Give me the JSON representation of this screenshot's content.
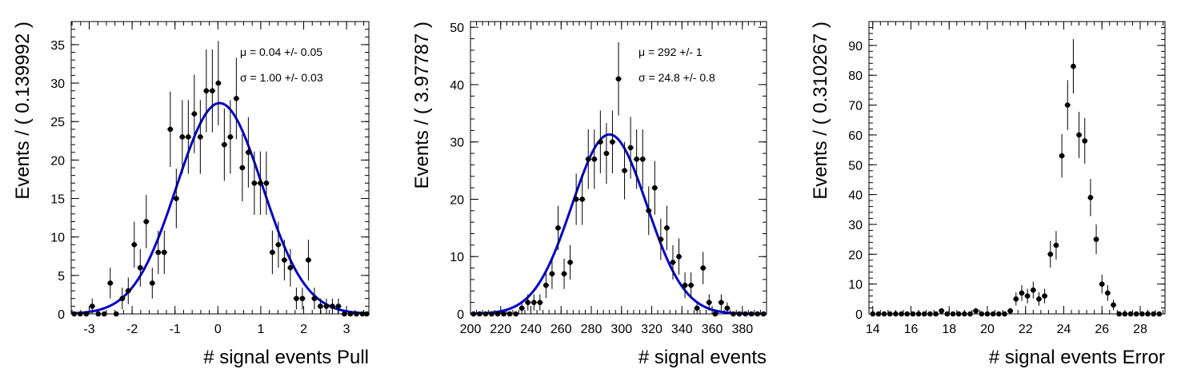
{
  "chart_data": [
    {
      "type": "scatter",
      "xlabel": "# signal events Pull",
      "ylabel": "Events / ( 0.139992 )",
      "xlim": [
        -3.42,
        3.52
      ],
      "ylim": [
        0,
        38
      ],
      "xticks": [
        -3,
        -2,
        -1,
        0,
        1,
        2,
        3
      ],
      "yticks": [
        0,
        5,
        10,
        15,
        20,
        25,
        30,
        35
      ],
      "annotations": [
        "μ =  0.04 +/- 0.05",
        "σ =  1.00 +/- 0.03"
      ],
      "fit": {
        "mean": 0.04,
        "sigma": 1.0,
        "amplitude": 27.4,
        "color": "#0000cc"
      },
      "points": {
        "x": [
          -3.35,
          -3.21,
          -3.07,
          -2.93,
          -2.79,
          -2.65,
          -2.51,
          -2.37,
          -2.23,
          -2.09,
          -1.95,
          -1.81,
          -1.67,
          -1.53,
          -1.39,
          -1.25,
          -1.11,
          -0.97,
          -0.83,
          -0.69,
          -0.55,
          -0.41,
          -0.27,
          -0.13,
          0.01,
          0.15,
          0.29,
          0.43,
          0.57,
          0.71,
          0.85,
          0.99,
          1.13,
          1.27,
          1.41,
          1.55,
          1.69,
          1.83,
          1.97,
          2.11,
          2.25,
          2.39,
          2.53,
          2.67,
          2.81,
          2.95,
          3.09,
          3.23,
          3.37,
          3.47
        ],
        "y": [
          0,
          0,
          0,
          1,
          0,
          0,
          4,
          0,
          2,
          3,
          9,
          6,
          12,
          4,
          8,
          8,
          24,
          15,
          23,
          23,
          26,
          23,
          29,
          29,
          30,
          22,
          23,
          28,
          19,
          21,
          17,
          17,
          17,
          8,
          9,
          7,
          6,
          2,
          2,
          7,
          2,
          1,
          1,
          1,
          1,
          0,
          0,
          0,
          0,
          0
        ]
      }
    },
    {
      "type": "scatter",
      "xlabel": "# signal events",
      "ylabel": "Events / ( 3.97787 )",
      "xlim": [
        200,
        396
      ],
      "ylim": [
        0,
        51
      ],
      "xticks": [
        200,
        220,
        240,
        260,
        280,
        300,
        320,
        340,
        360,
        380
      ],
      "yticks": [
        0,
        10,
        20,
        30,
        40,
        50
      ],
      "annotations": [
        "μ =  292 +/- 1",
        "σ =  24.8 +/- 0.8"
      ],
      "fit": {
        "mean": 292,
        "sigma": 24.8,
        "amplitude": 31.3,
        "color": "#0000cc"
      },
      "points": {
        "x": [
          202,
          206,
          210,
          214,
          218,
          222,
          226,
          230,
          234,
          238,
          242,
          246,
          250,
          254,
          258,
          262,
          266,
          270,
          274,
          278,
          282,
          286,
          290,
          294,
          298,
          302,
          306,
          310,
          314,
          318,
          322,
          326,
          330,
          334,
          338,
          342,
          346,
          350,
          354,
          358,
          362,
          366,
          370,
          374,
          378,
          382,
          386,
          390,
          394
        ],
        "y": [
          0,
          0,
          0,
          0,
          0,
          0,
          0,
          0,
          1,
          2,
          2,
          2,
          5,
          7,
          15,
          7,
          9,
          20,
          20,
          27,
          27,
          30,
          28,
          30,
          41,
          25,
          29,
          27,
          27,
          18,
          22,
          13,
          15,
          9,
          10,
          5,
          5,
          1,
          8,
          2,
          0,
          2,
          1,
          0,
          0,
          0,
          0,
          0,
          0
        ]
      }
    },
    {
      "type": "scatter",
      "xlabel": "# signal events Error",
      "ylabel": "Events / ( 0.310267 )",
      "xlim": [
        13.8,
        29.3
      ],
      "ylim": [
        0,
        98
      ],
      "xticks": [
        14,
        16,
        18,
        20,
        22,
        24,
        26,
        28
      ],
      "yticks": [
        0,
        10,
        20,
        30,
        40,
        50,
        60,
        70,
        80,
        90
      ],
      "annotations": [],
      "points": {
        "x": [
          14.0,
          14.3,
          14.6,
          14.9,
          15.2,
          15.5,
          15.8,
          16.1,
          16.4,
          16.7,
          17.0,
          17.3,
          17.6,
          17.9,
          18.2,
          18.5,
          18.8,
          19.1,
          19.4,
          19.7,
          20.0,
          20.3,
          20.6,
          20.9,
          21.2,
          21.5,
          21.8,
          22.1,
          22.4,
          22.7,
          23.0,
          23.3,
          23.6,
          23.9,
          24.2,
          24.5,
          24.8,
          25.1,
          25.4,
          25.7,
          26.0,
          26.3,
          26.6,
          26.9,
          27.2,
          27.5,
          27.8,
          28.1,
          28.4,
          28.7,
          29.0
        ],
        "y": [
          0,
          0,
          0,
          0,
          0,
          0,
          0,
          0,
          0,
          0,
          0,
          0,
          1,
          0,
          0,
          0,
          0,
          0,
          1,
          0,
          0,
          0,
          0,
          0,
          1,
          5,
          7,
          6,
          8,
          5,
          6,
          20,
          23,
          53,
          70,
          83,
          60,
          58,
          39,
          25,
          10,
          7,
          3,
          0,
          0,
          0,
          0,
          0,
          0,
          0,
          0
        ]
      }
    }
  ]
}
